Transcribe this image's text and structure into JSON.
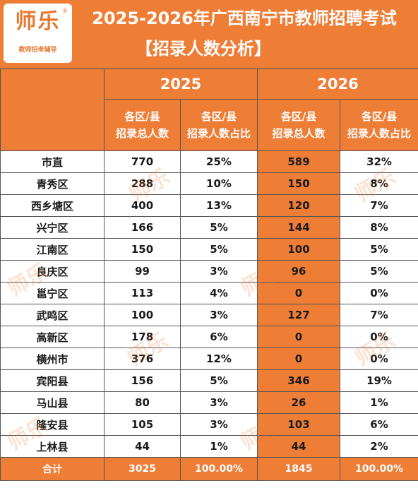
{
  "header": {
    "logo_main": "师乐",
    "logo_reg": "®",
    "logo_sub": "教师招考辅导",
    "title": "2025-2026年广西南宁市教师招聘考试",
    "subtitle": "【招录人数分析】"
  },
  "table": {
    "years": [
      "2025",
      "2026"
    ],
    "sub_headers": {
      "total": [
        "各区/县",
        "招录总人数"
      ],
      "ratio": [
        "各区/县",
        "招录人数占比"
      ]
    },
    "rows": [
      {
        "district": "市直",
        "c2025": "770",
        "r2025": "25%",
        "c2026": "589",
        "r2026": "32%"
      },
      {
        "district": "青秀区",
        "c2025": "288",
        "r2025": "10%",
        "c2026": "150",
        "r2026": "8%"
      },
      {
        "district": "西乡塘区",
        "c2025": "400",
        "r2025": "13%",
        "c2026": "120",
        "r2026": "7%"
      },
      {
        "district": "兴宁区",
        "c2025": "166",
        "r2025": "5%",
        "c2026": "144",
        "r2026": "8%"
      },
      {
        "district": "江南区",
        "c2025": "150",
        "r2025": "5%",
        "c2026": "100",
        "r2026": "5%"
      },
      {
        "district": "良庆区",
        "c2025": "99",
        "r2025": "3%",
        "c2026": "96",
        "r2026": "5%"
      },
      {
        "district": "邕宁区",
        "c2025": "113",
        "r2025": "4%",
        "c2026": "0",
        "r2026": "0%"
      },
      {
        "district": "武鸣区",
        "c2025": "100",
        "r2025": "3%",
        "c2026": "127",
        "r2026": "7%"
      },
      {
        "district": "高新区",
        "c2025": "178",
        "r2025": "6%",
        "c2026": "0",
        "r2026": "0%"
      },
      {
        "district": "横州市",
        "c2025": "376",
        "r2025": "12%",
        "c2026": "0",
        "r2026": "0%"
      },
      {
        "district": "宾阳县",
        "c2025": "156",
        "r2025": "5%",
        "c2026": "346",
        "r2026": "19%"
      },
      {
        "district": "马山县",
        "c2025": "80",
        "r2025": "3%",
        "c2026": "26",
        "r2026": "1%"
      },
      {
        "district": "隆安县",
        "c2025": "105",
        "r2025": "3%",
        "c2026": "103",
        "r2026": "6%"
      },
      {
        "district": "上林县",
        "c2025": "44",
        "r2025": "1%",
        "c2026": "44",
        "r2026": "2%"
      }
    ],
    "total": {
      "label": "合计",
      "c2025": "3025",
      "r2025": "100.00%",
      "c2026": "1845",
      "r2026": "100.00%"
    }
  },
  "watermark": "师乐",
  "colors": {
    "accent": "#ee7d36",
    "border": "#555555"
  }
}
